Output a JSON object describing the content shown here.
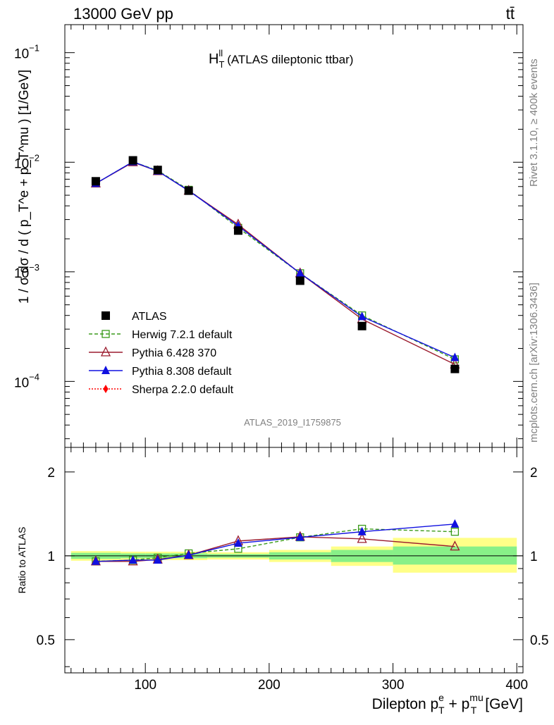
{
  "header": {
    "energy_label": "13000 GeV pp",
    "process_label": "tt̄",
    "side_label_top": "Rivet 3.1.10, ≥ 400k events",
    "side_label_bottom": "mcplots.cern.ch [arXiv:1306.3436]",
    "analysis_id": "ATLAS_2019_I1759875"
  },
  "chart_data": [
    {
      "type": "scatter",
      "panel": "main",
      "title": "H_T^ll (ATLAS dileptonic ttbar)",
      "title_main": "H",
      "title_sub": "T",
      "title_sup": "ll",
      "title_rest": "(ATLAS dileptonic ttbar)",
      "ylabel": "1 / σ dσ / d ( p_T^e + p_T^mu ) [1/GeV]",
      "yscale": "log",
      "ylim": [
        2.5e-05,
        0.18
      ],
      "xlim": [
        35,
        405
      ],
      "y_ticks": [
        {
          "value": 0.1,
          "base": "10",
          "exp": "−1"
        },
        {
          "value": 0.01,
          "base": "10",
          "exp": "−2"
        },
        {
          "value": 0.001,
          "base": "10",
          "exp": "−3"
        },
        {
          "value": 0.0001,
          "base": "10",
          "exp": "−4"
        }
      ],
      "legend_position": "bottom-left",
      "x": [
        60,
        90,
        110,
        135,
        175,
        225,
        275,
        350
      ],
      "series": [
        {
          "name": "ATLAS",
          "color": "#000000",
          "marker": "square-filled",
          "line": "none",
          "values": [
            0.0067,
            0.0104,
            0.0085,
            0.0055,
            0.00238,
            0.00083,
            0.00032,
            0.00013
          ]
        },
        {
          "name": "Herwig 7.2.1 default",
          "color": "#3a9a1a",
          "marker": "square-open",
          "line": "dashed",
          "values": [
            0.0064,
            0.0101,
            0.0084,
            0.0056,
            0.00252,
            0.00097,
            0.0004,
            0.000159
          ]
        },
        {
          "name": "Pythia 6.428 370",
          "color": "#9b1c2e",
          "marker": "triangle-open",
          "line": "solid",
          "values": [
            0.0064,
            0.01,
            0.0083,
            0.0055,
            0.0027,
            0.00097,
            0.00037,
            0.000143
          ]
        },
        {
          "name": "Pythia 8.308 default",
          "color": "#1010e0",
          "marker": "triangle-filled",
          "line": "solid",
          "values": [
            0.0064,
            0.0101,
            0.0083,
            0.0055,
            0.00262,
            0.00097,
            0.00039,
            0.000165
          ]
        },
        {
          "name": "Sherpa 2.2.0 default",
          "color": "#ff0000",
          "marker": "diamond-filled",
          "line": "dotted",
          "values": []
        }
      ]
    },
    {
      "type": "scatter",
      "panel": "ratio",
      "ylabel": "Ratio to ATLAS",
      "xlabel": "Dilepton p_T^e + p_T^mu [GeV]",
      "xlabel_main": "Dilepton p",
      "xlabel_sup1": "e",
      "xlabel_sub1": "T",
      "xlabel_mid": "+ p",
      "xlabel_sup2": "mu",
      "xlabel_sub2": "T",
      "xlabel_unit": "[GeV]",
      "yscale": "log",
      "ylim": [
        0.38,
        2.45
      ],
      "xlim": [
        35,
        405
      ],
      "y_ticks": [
        0.5,
        1,
        2
      ],
      "y_tick_labels": [
        "0.5",
        "1",
        "2"
      ],
      "x_ticks": [
        100,
        200,
        300,
        400
      ],
      "x_tick_labels": [
        "100",
        "200",
        "300",
        "400"
      ],
      "uncertainty_bands": [
        {
          "x0": 40,
          "x1": 80,
          "green": [
            0.975,
            1.025
          ],
          "yellow": [
            0.96,
            1.04
          ]
        },
        {
          "x0": 80,
          "x1": 100,
          "green": [
            0.98,
            1.02
          ],
          "yellow": [
            0.965,
            1.035
          ]
        },
        {
          "x0": 100,
          "x1": 120,
          "green": [
            0.98,
            1.02
          ],
          "yellow": [
            0.965,
            1.035
          ]
        },
        {
          "x0": 120,
          "x1": 150,
          "green": [
            0.98,
            1.02
          ],
          "yellow": [
            0.965,
            1.035
          ]
        },
        {
          "x0": 150,
          "x1": 200,
          "green": [
            0.985,
            1.015
          ],
          "yellow": [
            0.97,
            1.03
          ]
        },
        {
          "x0": 200,
          "x1": 250,
          "green": [
            0.97,
            1.03
          ],
          "yellow": [
            0.95,
            1.05
          ]
        },
        {
          "x0": 250,
          "x1": 300,
          "green": [
            0.95,
            1.05
          ],
          "yellow": [
            0.92,
            1.08
          ]
        },
        {
          "x0": 300,
          "x1": 400,
          "green": [
            0.93,
            1.08
          ],
          "yellow": [
            0.87,
            1.16
          ]
        }
      ],
      "x": [
        60,
        90,
        110,
        135,
        175,
        225,
        275,
        350
      ],
      "series": [
        {
          "name": "Herwig 7.2.1 default",
          "color": "#3a9a1a",
          "marker": "square-open",
          "line": "dashed",
          "values": [
            0.955,
            0.965,
            0.985,
            1.02,
            1.06,
            1.165,
            1.25,
            1.22
          ]
        },
        {
          "name": "Pythia 6.428 370",
          "color": "#9b1c2e",
          "marker": "triangle-open",
          "line": "solid",
          "values": [
            0.955,
            0.955,
            0.97,
            1.005,
            1.13,
            1.17,
            1.15,
            1.08
          ]
        },
        {
          "name": "Pythia 8.308 default",
          "color": "#1010e0",
          "marker": "triangle-filled",
          "line": "solid",
          "values": [
            0.955,
            0.965,
            0.965,
            1.005,
            1.11,
            1.165,
            1.22,
            1.3
          ]
        }
      ]
    }
  ]
}
